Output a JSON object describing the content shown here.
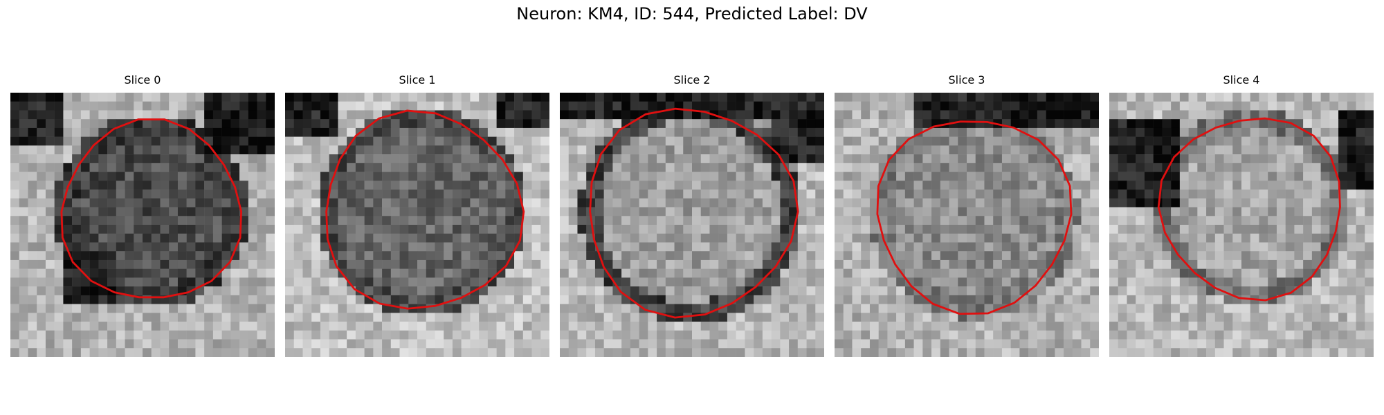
{
  "figure": {
    "suptitle": "Neuron: KM4, ID: 544, Predicted Label: DV",
    "contour_color": "#e01010",
    "panels": [
      {
        "title": "Slice 0"
      },
      {
        "title": "Slice 1"
      },
      {
        "title": "Slice 2"
      },
      {
        "title": "Slice 3"
      },
      {
        "title": "Slice 4"
      }
    ]
  }
}
